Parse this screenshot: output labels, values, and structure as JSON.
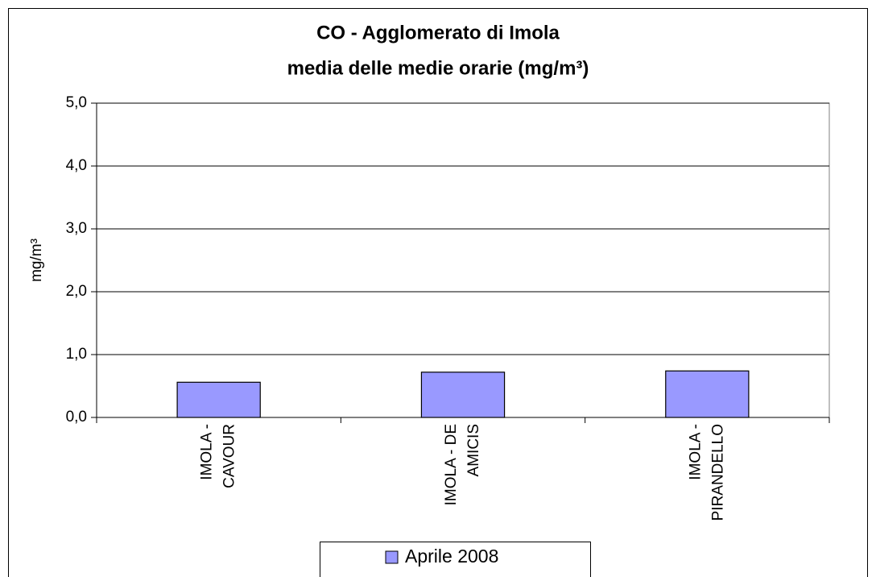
{
  "chart_data": {
    "type": "bar",
    "title": "CO - Agglomerato di Imola",
    "subtitle": "media delle medie orarie  (mg/m³)",
    "y_label": "mg/m³",
    "categories": [
      [
        "IMOLA -",
        "CAVOUR"
      ],
      [
        "IMOLA - DE",
        "AMICIS"
      ],
      [
        "IMOLA -",
        "PIRANDELLO"
      ]
    ],
    "series": [
      {
        "name": "Aprile 2008",
        "color": "#9999ff",
        "values": [
          0.56,
          0.72,
          0.74
        ]
      }
    ],
    "ylim": [
      0,
      5
    ],
    "yticks": [
      {
        "value": 0,
        "label": "0,0"
      },
      {
        "value": 1,
        "label": "1,0"
      },
      {
        "value": 2,
        "label": "2,0"
      },
      {
        "value": 3,
        "label": "3,0"
      },
      {
        "value": 4,
        "label": "4,0"
      },
      {
        "value": 5,
        "label": "5,0"
      }
    ],
    "grid": true,
    "legend": "bottom"
  }
}
